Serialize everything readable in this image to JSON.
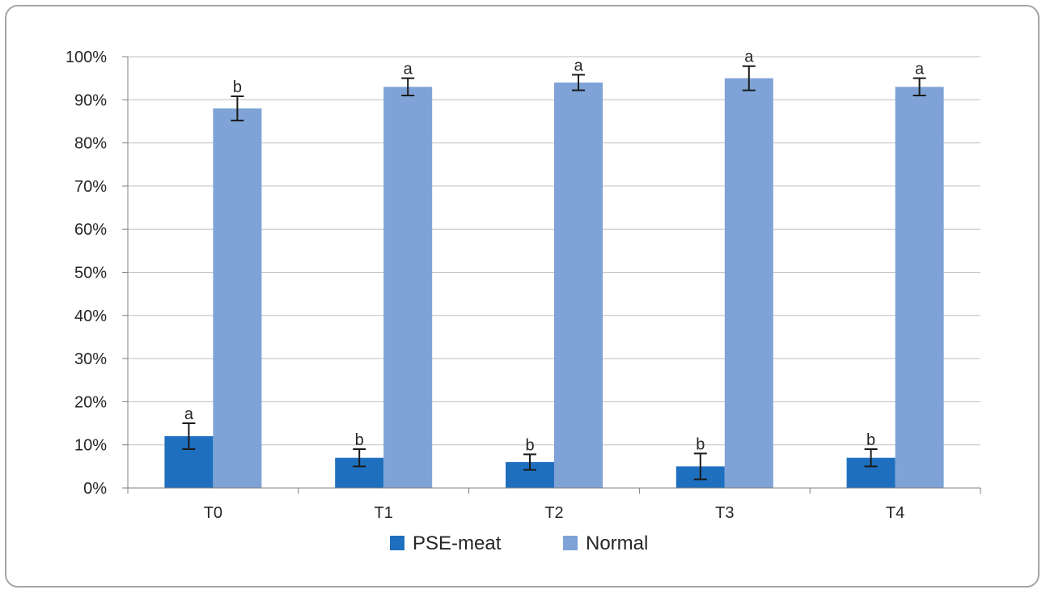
{
  "chart_data": {
    "type": "bar",
    "title": "",
    "xlabel": "",
    "ylabel": "",
    "categories": [
      "T0",
      "T1",
      "T2",
      "T3",
      "T4"
    ],
    "ylim": [
      0,
      100
    ],
    "y_ticks": [
      0,
      10,
      20,
      30,
      40,
      50,
      60,
      70,
      80,
      90,
      100
    ],
    "y_tick_labels": [
      "0%",
      "10%",
      "20%",
      "30%",
      "40%",
      "50%",
      "60%",
      "70%",
      "80%",
      "90%",
      "100%"
    ],
    "y_format": "percent",
    "grid": true,
    "legend_position": "bottom",
    "series": [
      {
        "name": "PSE-meat",
        "color": "#1f6fbf",
        "values": [
          12,
          7,
          6,
          5,
          7
        ],
        "error": [
          3,
          2,
          1.8,
          3,
          2
        ],
        "letters": [
          "a",
          "b",
          "b",
          "b",
          "b"
        ]
      },
      {
        "name": "Normal",
        "color": "#7fa3d6",
        "values": [
          88,
          93,
          94,
          95,
          93
        ],
        "error": [
          2.8,
          2,
          1.8,
          2.8,
          2
        ],
        "letters": [
          "b",
          "a",
          "a",
          "a",
          "a"
        ]
      }
    ]
  }
}
